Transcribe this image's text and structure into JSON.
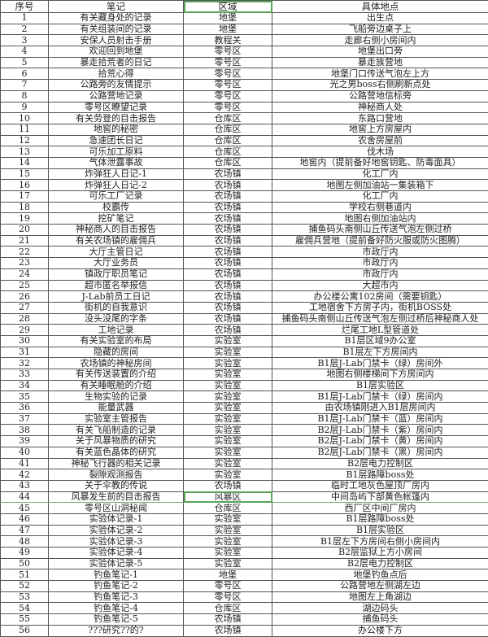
{
  "headers": [
    "序号",
    "笔记",
    "区域",
    "具体地点"
  ],
  "rows": [
    [
      "1",
      "有关藏身处的记录",
      "地堡",
      "出生点"
    ],
    [
      "2",
      "有关组装间的记录",
      "地堡",
      "飞船旁边桌子上"
    ],
    [
      "3",
      "安保人员射击手册",
      "教程关",
      "走廊右侧小房间内"
    ],
    [
      "4",
      "欢迎回到地堡",
      "零号区",
      "地堡出口旁"
    ],
    [
      "5",
      "暴走拾荒者的日记",
      "零号区",
      "暴走族营地"
    ],
    [
      "6",
      "拾荒心得",
      "零号区",
      "地堡门口传送气泡左上方"
    ],
    [
      "7",
      "公路旁的友情提示",
      "零号区",
      "光之男boss右侧刷新点处"
    ],
    [
      "8",
      "公路营地记录",
      "零号区",
      "公路营地信标旁"
    ],
    [
      "9",
      "零号区瞭望记录",
      "零号区",
      "神秘商人处"
    ],
    [
      "10",
      "有关劳登的目击报告",
      "仓库区",
      "东路口营地"
    ],
    [
      "11",
      "地窖的秘密",
      "仓库区",
      "地窖上方房屋内"
    ],
    [
      "12",
      "急速团长日记",
      "仓库区",
      "农舍房屋前"
    ],
    [
      "13",
      "可乐加工原料",
      "仓库区",
      "伐木场"
    ],
    [
      "14",
      "气体泄露事故",
      "仓库区",
      "地窖内（提前备好地窖钥匙、防毒面具）"
    ],
    [
      "15",
      "炸弹狂人日记-1",
      "农场镇",
      "化工厂内"
    ],
    [
      "16",
      "炸弹狂人日记-2",
      "农场镇",
      "地图左侧加油站一集装箱下"
    ],
    [
      "17",
      "可乐工厂记录",
      "农场镇",
      "化工厂内"
    ],
    [
      "18",
      "校霸传",
      "农场镇",
      "学校右侧巷道内"
    ],
    [
      "19",
      "挖矿笔记",
      "农场镇",
      "地图右侧加油站内"
    ],
    [
      "20",
      "神秘商人的目击报告",
      "农场镇",
      "捕鱼码头南侧山丘传送气泡左侧过桥"
    ],
    [
      "21",
      "有关农场镇的雇佣兵",
      "农场镇",
      "雇佣兵营地（提前备好防火服或防火图腾）"
    ],
    [
      "22",
      "大厅主管日记",
      "农场镇",
      "市政厅内"
    ],
    [
      "23",
      "大厅业务员",
      "农场镇",
      "市政厅内"
    ],
    [
      "24",
      "镇政厅职员笔记",
      "农场镇",
      "市政厅内"
    ],
    [
      "25",
      "超市匿名举报信",
      "农场镇",
      "大超市内"
    ],
    [
      "26",
      "J-Lab前员工日记",
      "农场镇",
      "办公楼公寓102房间（需要钥匙）"
    ],
    [
      "27",
      "街机的自我意识",
      "农场镇",
      "工地宿舍下方房子内，街机BOSS处"
    ],
    [
      "28",
      "没头没尾的字条",
      "农场镇",
      "捕鱼码头南侧山丘传送气泡左侧过桥后神秘商人处"
    ],
    [
      "29",
      "工地记录",
      "农场镇",
      "烂尾工地L型管道处"
    ],
    [
      "30",
      "有关实验室的布局",
      "实验室",
      "B1层区域9办公室"
    ],
    [
      "31",
      "隐藏的房间",
      "实验室",
      "B1层左下方房间内"
    ],
    [
      "32",
      "农场镇的神秘房间",
      "实验室",
      "B1层J-Lab门禁卡（绿）房间外"
    ],
    [
      "33",
      "有关传送装置的介绍",
      "实验室",
      "地图右侧楼梯间下方房间内"
    ],
    [
      "34",
      "有关睡眠舱的介绍",
      "实验室",
      "B1层实验区"
    ],
    [
      "35",
      "生物实验的记录",
      "实验室",
      "B1层J-Lab门禁卡（绿）房间内"
    ],
    [
      "36",
      "能量武器",
      "实验室",
      "由农场镇刚进入B1层房间内"
    ],
    [
      "37",
      "实验室主管报告",
      "实验室",
      "B1层J-Lab门禁卡（蓝）房间内"
    ],
    [
      "38",
      "有关飞船制造的记录",
      "实验室",
      "B2层J-Lab门禁卡（紫）房间内"
    ],
    [
      "39",
      "关于风暴物质的研究",
      "实验室",
      "B2层J-Lab门禁卡（黄）房间内"
    ],
    [
      "40",
      "有关蓝色晶体的研究",
      "实验室",
      "B2层J-Lab门禁卡（黑）房间内"
    ],
    [
      "41",
      "神秘飞行器的相关记录",
      "实验室",
      "B2层电力控制区"
    ],
    [
      "42",
      "裂隙观测报告",
      "实验室",
      "B1层路障boss处"
    ],
    [
      "43",
      "关于伞教的传说",
      "农场镇",
      "临时工地灰色屋顶厂房内"
    ],
    [
      "44",
      "风暴发生前的目击报告",
      "风暴区",
      "中间岛屿下部黄色帐篷内"
    ],
    [
      "45",
      "零号区山洞秘闻",
      "仓库区",
      "西厂区中间厂房内"
    ],
    [
      "46",
      "实验体记录-1",
      "实验室",
      "B1层路障boss处"
    ],
    [
      "47",
      "实验体记录-2",
      "实验室",
      "B1层实验区"
    ],
    [
      "48",
      "实验体记录-3",
      "实验室",
      "B1层左下方房间右侧小房间内"
    ],
    [
      "49",
      "实验体记录-4",
      "实验室",
      "B2层监狱上方小房间"
    ],
    [
      "50",
      "实验体记录-5",
      "实验室",
      "B2层电力控制区"
    ],
    [
      "51",
      "钓鱼笔记-1",
      "地堡",
      "地堡钓鱼点后"
    ],
    [
      "52",
      "钓鱼笔记-2",
      "零号区",
      "公路营地左侧湖左边"
    ],
    [
      "53",
      "钓鱼笔记-3",
      "零号区",
      "地图左上角湖边"
    ],
    [
      "54",
      "钓鱼笔记-4",
      "仓库区",
      "湖边码头"
    ],
    [
      "55",
      "钓鱼笔记-5",
      "农场镇",
      "捕鱼码头"
    ],
    [
      "56",
      "???研究??的?",
      "农场镇",
      "办公楼下方"
    ]
  ],
  "selected_row": 44,
  "selection_color": "#5aa55a"
}
